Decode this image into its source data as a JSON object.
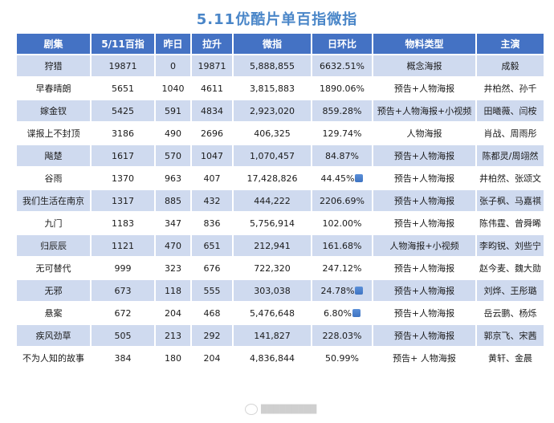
{
  "title": "5.11优酷片单百指微指",
  "chart_data": {
    "type": "table",
    "columns": [
      "剧集",
      "5/11百指",
      "昨日",
      "拉升",
      "微指",
      "日环比",
      "物料类型",
      "主演"
    ],
    "rows": [
      [
        "狩猎",
        "19871",
        "0",
        "19871",
        "5,888,855",
        "6632.51%",
        "概念海报",
        "成毅"
      ],
      [
        "早春晴朗",
        "5651",
        "1040",
        "4611",
        "3,815,883",
        "1890.06%",
        "预告+人物海报",
        "井柏然、孙千"
      ],
      [
        "嫁金钗",
        "5425",
        "591",
        "4834",
        "2,923,020",
        "859.28%",
        "预告+人物海报+小视频",
        "田曦薇、闫桉"
      ],
      [
        "谍报上不封顶",
        "3186",
        "490",
        "2696",
        "406,325",
        "129.74%",
        "人物海报",
        "肖战、周雨彤"
      ],
      [
        "飚楚",
        "1617",
        "570",
        "1047",
        "1,070,457",
        "84.87%",
        "预告+人物海报",
        "陈都灵/周翊然"
      ],
      [
        "谷雨",
        "1370",
        "963",
        "407",
        "17,428,826",
        "44.45%",
        "预告+人物海报",
        "井柏然、张颂文"
      ],
      [
        "我们生活在南京",
        "1317",
        "885",
        "432",
        "444,222",
        "2206.69%",
        "预告+人物海报",
        "张子枫、马嘉祺"
      ],
      [
        "九门",
        "1183",
        "347",
        "836",
        "5,756,914",
        "102.00%",
        "预告+人物海报",
        "陈伟霆、曾舜晞"
      ],
      [
        "归辰辰",
        "1121",
        "470",
        "651",
        "212,941",
        "161.68%",
        "人物海报+小视频",
        "李昀锐、刘些宁"
      ],
      [
        "无可替代",
        "999",
        "323",
        "676",
        "722,320",
        "247.12%",
        "预告+人物海报",
        "赵今麦、魏大勋"
      ],
      [
        "无邪",
        "673",
        "118",
        "555",
        "303,038",
        "24.78%",
        "预告+人物海报",
        "刘烨、王彤璐"
      ],
      [
        "悬案",
        "672",
        "204",
        "468",
        "5,476,648",
        "6.80%",
        "预告+人物海报",
        "岳云鹏、杨烁"
      ],
      [
        "疾风劲草",
        "505",
        "213",
        "292",
        "141,827",
        "228.03%",
        "预告+人物海报",
        "郭京飞、宋茜"
      ],
      [
        "不为人知的故事",
        "384",
        "180",
        "204",
        "4,836,844",
        "50.99%",
        "预告+ 人物海报",
        "黄轩、金晨"
      ]
    ],
    "decreased_rows": [
      5,
      10,
      11
    ]
  },
  "colors": {
    "title": "#4a86c8",
    "header_bg": "#4472c4",
    "row_alt_bg": "#cfdaef",
    "down_arrow": "#4a7fcf"
  },
  "icons": {
    "down": "down-arrow-icon"
  }
}
